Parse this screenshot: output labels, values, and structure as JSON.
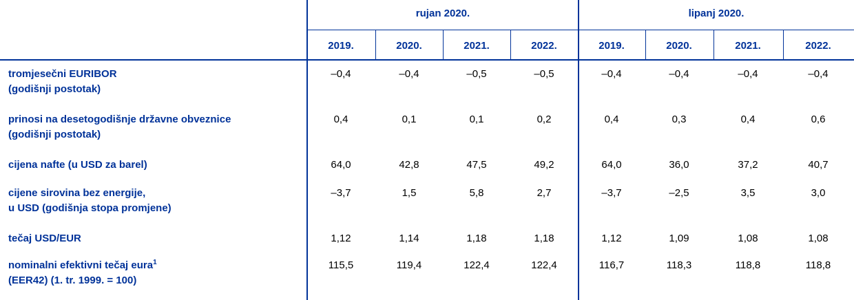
{
  "table": {
    "groups": [
      {
        "label": "rujan 2020.",
        "years": [
          "2019.",
          "2020.",
          "2021.",
          "2022."
        ]
      },
      {
        "label": "lipanj 2020.",
        "years": [
          "2019.",
          "2020.",
          "2021.",
          "2022."
        ]
      }
    ],
    "rows": [
      {
        "label": [
          "tromjesečni EURIBOR",
          "(godišnji postotak)"
        ],
        "values": [
          "–0,4",
          "–0,4",
          "–0,5",
          "–0,5",
          "–0,4",
          "–0,4",
          "–0,4",
          "–0,4"
        ]
      },
      {
        "label": [
          "prinosi na desetogodišnje državne obveznice",
          "(godišnji postotak)"
        ],
        "values": [
          "0,4",
          "0,1",
          "0,1",
          "0,2",
          "0,4",
          "0,3",
          "0,4",
          "0,6"
        ]
      },
      {
        "label": [
          "cijena nafte (u USD za barel)"
        ],
        "values": [
          "64,0",
          "42,8",
          "47,5",
          "49,2",
          "64,0",
          "36,0",
          "37,2",
          "40,7"
        ]
      },
      {
        "label": [
          "cijene sirovina bez energije,",
          "u USD (godišnja stopa promjene)"
        ],
        "values": [
          "–3,7",
          "1,5",
          "5,8",
          "2,7",
          "–3,7",
          "–2,5",
          "3,5",
          "3,0"
        ]
      },
      {
        "label": [
          "tečaj USD/EUR"
        ],
        "values": [
          "1,12",
          "1,14",
          "1,18",
          "1,18",
          "1,12",
          "1,09",
          "1,08",
          "1,08"
        ]
      },
      {
        "label": [
          "nominalni efektivni tečaj eura",
          "(EER42) (1. tr. 1999. = 100)"
        ],
        "footnote": "1",
        "values": [
          "115,5",
          "119,4",
          "122,4",
          "122,4",
          "116,7",
          "118,3",
          "118,8",
          "118,8"
        ]
      }
    ]
  }
}
